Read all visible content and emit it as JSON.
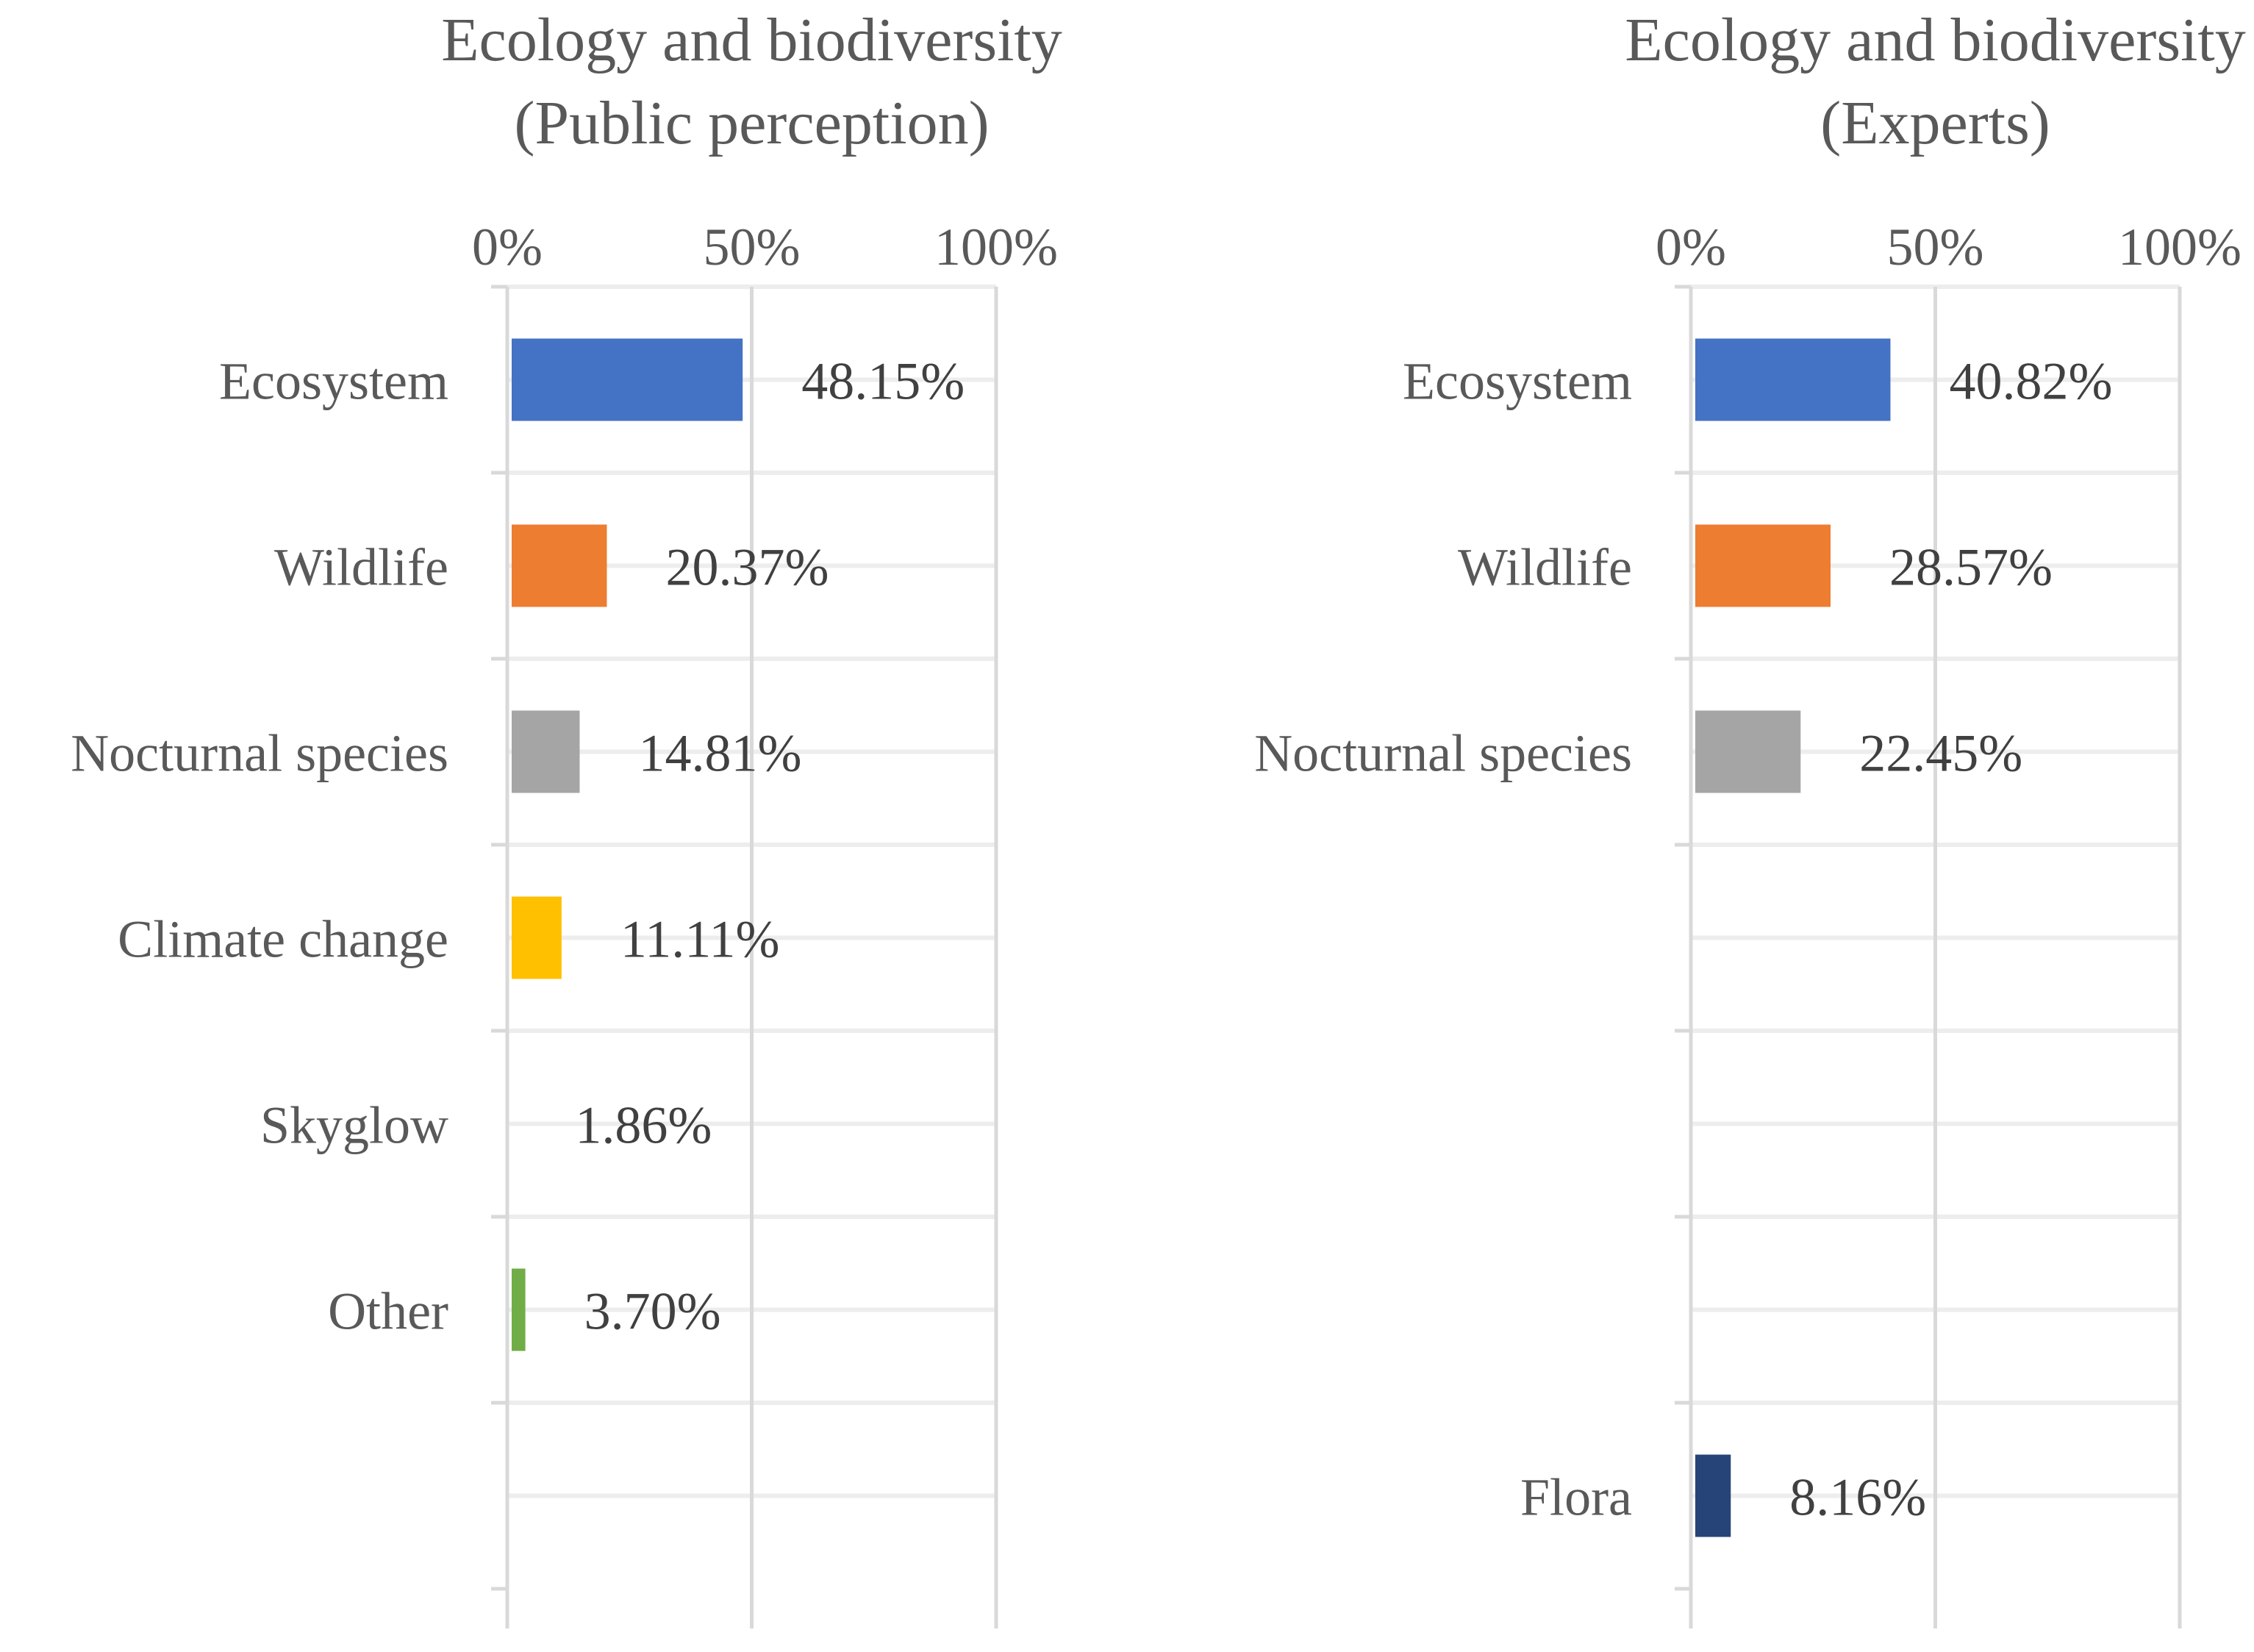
{
  "chart_data": [
    {
      "type": "bar",
      "orientation": "horizontal",
      "title": [
        "Ecology and biodiversity",
        "(Public perception)"
      ],
      "x_ticks": [
        "0%",
        "50%",
        "100%"
      ],
      "xlim": [
        0,
        100
      ],
      "axis_position": "top",
      "slots": 7,
      "series": [
        {
          "name": "Ecosystem",
          "value": 48.15,
          "label": "48.15%",
          "color": "#4472C4",
          "slot": 0
        },
        {
          "name": "Wildlife",
          "value": 20.37,
          "label": "20.37%",
          "color": "#ED7D31",
          "slot": 1
        },
        {
          "name": "Nocturnal species",
          "value": 14.81,
          "label": "14.81%",
          "color": "#A5A5A5",
          "slot": 2
        },
        {
          "name": "Climate change",
          "value": 11.11,
          "label": "11.11%",
          "color": "#FFC000",
          "slot": 3
        },
        {
          "name": "Skyglow",
          "value": 1.86,
          "label": "1.86%",
          "color": "#5B9BD5",
          "slot": 4,
          "bar_hidden": true
        },
        {
          "name": "Other",
          "value": 3.7,
          "label": "3.70%",
          "color": "#70AD47",
          "slot": 5
        }
      ]
    },
    {
      "type": "bar",
      "orientation": "horizontal",
      "title": [
        "Ecology and biodiversity",
        "(Experts)"
      ],
      "x_ticks": [
        "0%",
        "50%",
        "100%"
      ],
      "xlim": [
        0,
        100
      ],
      "axis_position": "top",
      "slots": 7,
      "series": [
        {
          "name": "Ecosystem",
          "value": 40.82,
          "label": "40.82%",
          "color": "#4472C4",
          "slot": 0
        },
        {
          "name": "Wildlife",
          "value": 28.57,
          "label": "28.57%",
          "color": "#ED7D31",
          "slot": 1
        },
        {
          "name": "Nocturnal species",
          "value": 22.45,
          "label": "22.45%",
          "color": "#A5A5A5",
          "slot": 2
        },
        {
          "name": "Flora",
          "value": 8.16,
          "label": "8.16%",
          "color": "#264478",
          "slot": 6
        }
      ]
    }
  ]
}
